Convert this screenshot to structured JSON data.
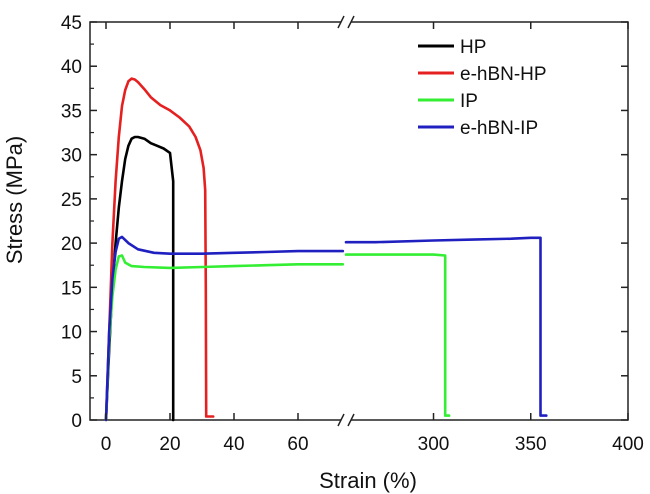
{
  "chart_data": {
    "type": "line",
    "title": "",
    "xlabel": "Strain (%)",
    "ylabel": "Stress (MPa)",
    "ylim": [
      0,
      45
    ],
    "x_segments": [
      {
        "range": [
          -5,
          75
        ],
        "ticks": [
          0,
          20,
          40,
          60
        ],
        "tick_labels": [
          "0",
          "20",
          "40",
          "60"
        ]
      },
      {
        "range": [
          255,
          400
        ],
        "ticks": [
          300,
          350,
          400
        ],
        "tick_labels": [
          "300",
          "350",
          "400"
        ]
      }
    ],
    "axis_break": true,
    "y_ticks": [
      0,
      5,
      10,
      15,
      20,
      25,
      30,
      35,
      40,
      45
    ],
    "y_tick_labels": [
      "0",
      "5",
      "10",
      "15",
      "20",
      "25",
      "30",
      "35",
      "40",
      "45"
    ],
    "grid": false,
    "legend_position": "top-right",
    "series": [
      {
        "name": "HP",
        "color": "#000000",
        "x": [
          0,
          1,
          2,
          3,
          4,
          5,
          6,
          7,
          8,
          9,
          10,
          12,
          14,
          16,
          18,
          20,
          21,
          21,
          21
        ],
        "y": [
          0,
          8,
          15,
          20,
          24,
          27,
          29.5,
          31,
          31.8,
          32,
          32,
          31.8,
          31.3,
          31,
          30.7,
          30.2,
          27,
          10,
          0
        ]
      },
      {
        "name": "e-hBN-HP",
        "color": "#e52020",
        "x": [
          0,
          1,
          2,
          3,
          4,
          5,
          6,
          7,
          8,
          9,
          10,
          12,
          14,
          17,
          20,
          23,
          26,
          28,
          29.5,
          30.5,
          31,
          31.2,
          31.3,
          31.3,
          33.5
        ],
        "y": [
          0,
          10,
          20,
          27,
          32,
          35.5,
          37.3,
          38.3,
          38.6,
          38.5,
          38.2,
          37.4,
          36.5,
          35.6,
          35,
          34.2,
          33.2,
          32,
          30.5,
          28.5,
          26,
          15,
          0.5,
          0.4,
          0.4
        ]
      },
      {
        "name": "IP",
        "color": "#33ee33",
        "x": [
          0,
          1,
          2,
          3,
          4,
          5,
          6,
          8,
          12,
          20,
          30,
          40,
          50,
          60,
          70,
          74,
          null,
          255,
          280,
          300,
          306,
          306,
          306.5,
          308
        ],
        "y": [
          0,
          9,
          14,
          17,
          18.5,
          18.6,
          17.8,
          17.4,
          17.3,
          17.2,
          17.3,
          17.4,
          17.5,
          17.6,
          17.6,
          17.6,
          null,
          18.7,
          18.7,
          18.7,
          18.6,
          0.5,
          0.5,
          0.5
        ]
      },
      {
        "name": "e-hBN-IP",
        "color": "#2020c0",
        "x": [
          0,
          1,
          2,
          3,
          4,
          5,
          7,
          10,
          15,
          20,
          30,
          40,
          50,
          60,
          70,
          74,
          null,
          255,
          270,
          300,
          320,
          340,
          350,
          355,
          355,
          356,
          358
        ],
        "y": [
          0,
          10,
          16,
          19,
          20.5,
          20.7,
          20,
          19.3,
          18.9,
          18.8,
          18.8,
          18.9,
          19,
          19.1,
          19.1,
          19.1,
          null,
          20.1,
          20.1,
          20.3,
          20.4,
          20.5,
          20.6,
          20.6,
          0.5,
          0.5,
          0.5
        ]
      }
    ]
  }
}
